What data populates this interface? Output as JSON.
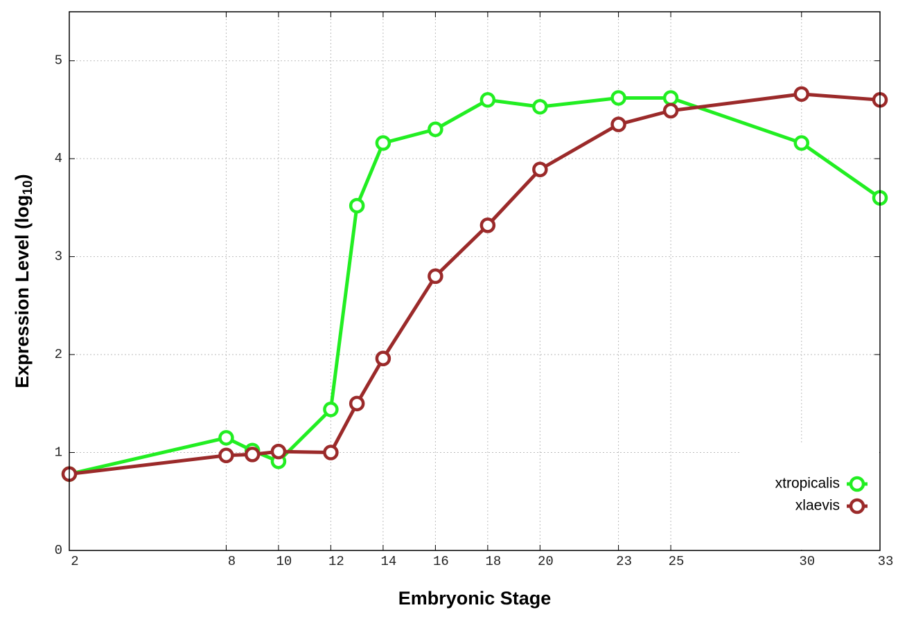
{
  "chart_data": {
    "type": "line",
    "xlabel": "Embryonic Stage",
    "ylabel": "Expression Level (log10)",
    "x": [
      2,
      8,
      9,
      10,
      12,
      13,
      14,
      16,
      18,
      20,
      23,
      25,
      30,
      33
    ],
    "series": [
      {
        "name": "xtropicalis",
        "color": "#22ee22",
        "values": [
          0.78,
          1.15,
          1.02,
          0.91,
          1.44,
          3.52,
          4.16,
          4.3,
          4.6,
          4.53,
          4.62,
          4.62,
          4.16,
          3.6
        ]
      },
      {
        "name": "xlaevis",
        "color": "#9b2a2a",
        "values": [
          0.78,
          0.97,
          0.98,
          1.01,
          1.0,
          1.5,
          1.96,
          2.8,
          3.32,
          3.89,
          4.35,
          4.49,
          4.66,
          4.6
        ]
      }
    ],
    "xlim": [
      2,
      33
    ],
    "xticks": [
      2,
      8,
      10,
      12,
      14,
      16,
      18,
      20,
      23,
      25,
      30,
      33
    ],
    "ylim": [
      0,
      5.5
    ],
    "yticks": [
      0,
      1,
      2,
      3,
      4,
      5
    ],
    "grid": true,
    "legend": "lower right"
  }
}
